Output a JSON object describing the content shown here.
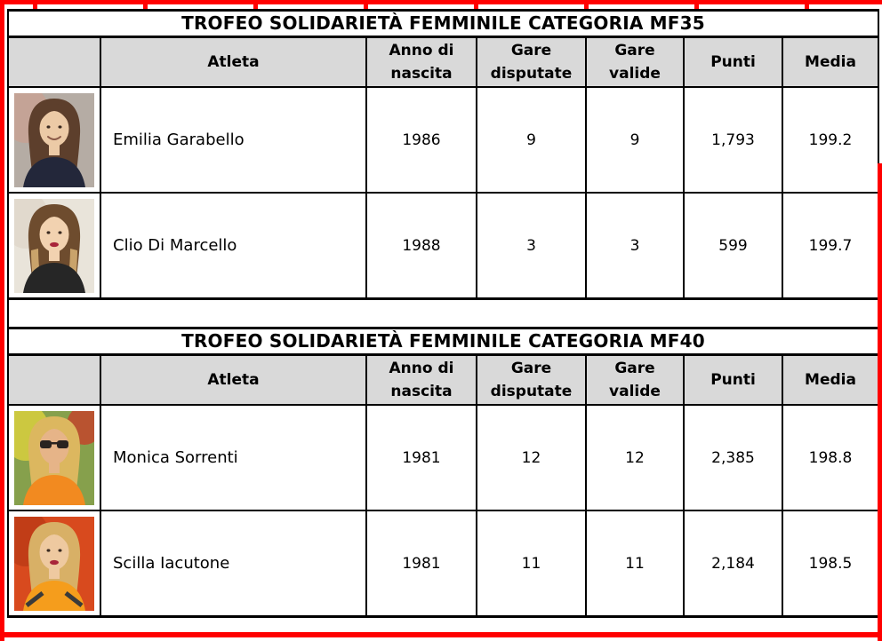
{
  "colors": {
    "page_border": "#ff0000",
    "table_border": "#000000",
    "header_bg": "#d9d9d9",
    "text": "#000000"
  },
  "columns": [
    "",
    "Atleta",
    "Anno di nascita",
    "Gare disputate",
    "Gare valide",
    "Punti",
    "Media"
  ],
  "tables": [
    {
      "title": "TROFEO SOLIDARIETÀ FEMMINILE CATEGORIA MF35",
      "rows": [
        {
          "atleta": "Emilia Garabello",
          "anno_di_nascita": "1986",
          "gare_disputate": "9",
          "gare_valide": "9",
          "punti": "1,793",
          "media": "199.2",
          "photo": {
            "desc": "smiling-woman-brown-hair-dark-top",
            "bg": "#b5aca4",
            "bg2": "#c9a091",
            "hair": "#5d3f2c",
            "skin": "#eccaa6",
            "shirt": "#23273a",
            "smile": true
          }
        },
        {
          "atleta": "Clio Di Marcello",
          "anno_di_nascita": "1988",
          "gare_disputate": "3",
          "gare_valide": "3",
          "punti": "599",
          "media": "199.7",
          "photo": {
            "desc": "passport-photo-ombre-hair-red-lipstick",
            "bg": "#e9e4da",
            "bg2": "#ded6c8",
            "hair": "#6e4c2e",
            "hair2": "#c9a36b",
            "skin": "#f2d2b0",
            "shirt": "#262626",
            "lipstick": true
          }
        }
      ]
    },
    {
      "title": "TROFEO SOLIDARIETÀ FEMMINILE CATEGORIA MF40",
      "rows": [
        {
          "atleta": "Monica Sorrenti",
          "anno_di_nascita": "1981",
          "gare_disputate": "12",
          "gare_valide": "12",
          "punti": "2,385",
          "media": "198.8",
          "photo": {
            "desc": "runner-sunglasses-orange-shirt-outdoors",
            "bg": "#86a04c",
            "bg2": "#e3d53c",
            "bg3": "#c2452c",
            "hair": "#dcb75f",
            "skin": "#e6b488",
            "shirt": "#f28a20",
            "glasses": true
          }
        },
        {
          "atleta": "Scilla Iacutone",
          "anno_di_nascita": "1981",
          "gare_disputate": "11",
          "gare_valide": "11",
          "punti": "2,184",
          "media": "198.5",
          "photo": {
            "desc": "long-blonde-hair-orange-jersey-red-background",
            "bg": "#d84a1e",
            "bg2": "#b93a16",
            "hair": "#d8b066",
            "skin": "#eec9a0",
            "shirt": "#f59d1c",
            "shirt2": "#3a3a3a",
            "lipstick": true
          }
        }
      ]
    }
  ]
}
